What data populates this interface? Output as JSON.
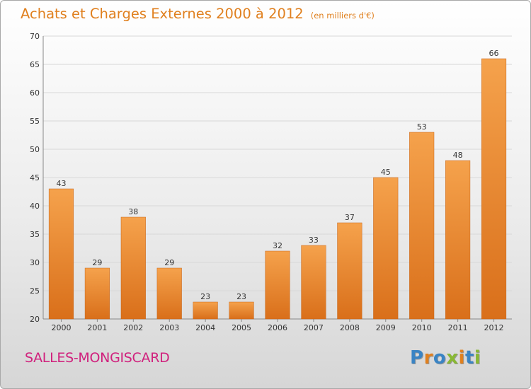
{
  "colors": {
    "bar_top": "#f5a24c",
    "bar_bottom": "#d96f1a",
    "title": "#e0801f",
    "place": "#d0217d",
    "logo_letters": [
      "#3a84c4",
      "#e0801f",
      "#3a84c4",
      "#89b834",
      "#e0801f",
      "#3a84c4",
      "#89b834"
    ]
  },
  "header": {
    "title": "Achats et Charges Externes 2000 à 2012",
    "unit": "(en milliers d'€)"
  },
  "footer": {
    "place": "SALLES-MONGISCARD",
    "logo": "Proxiti"
  },
  "chart_data": {
    "type": "bar",
    "title": "Achats et Charges Externes 2000 à 2012",
    "subtitle": "(en milliers d'€)",
    "xlabel": "",
    "ylabel": "",
    "ylim": [
      20,
      70
    ],
    "yticks": [
      20,
      25,
      30,
      35,
      40,
      45,
      50,
      55,
      60,
      65,
      70
    ],
    "grid": true,
    "legend": "none",
    "categories": [
      "2000",
      "2001",
      "2002",
      "2003",
      "2004",
      "2005",
      "2006",
      "2007",
      "2008",
      "2009",
      "2010",
      "2011",
      "2012"
    ],
    "values": [
      43,
      29,
      38,
      29,
      23,
      23,
      32,
      33,
      37,
      45,
      53,
      48,
      66
    ]
  }
}
